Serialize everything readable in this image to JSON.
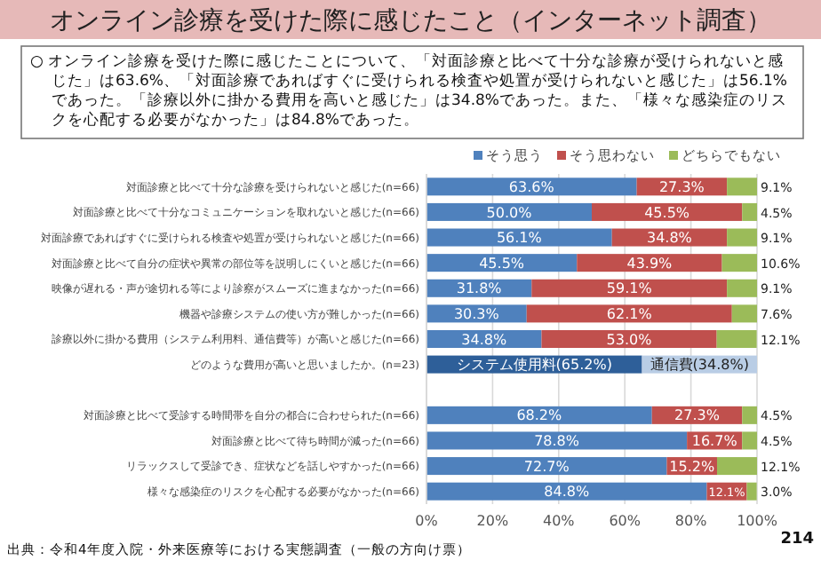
{
  "chart_data": {
    "type": "bar",
    "orientation": "horizontal",
    "stacked": true,
    "title": "オンライン診療を受けた際に感じたこと（インターネット調査）",
    "annotations": [
      "○ オンライン診療を受けた際に感じたことについて、「対面診療と比べて十分な診療が受けられないと感じた」は63.6%、「対面診療であればすぐに受けられる検査や処置が受けられないと感じた」は56.1%であった。「診療以外に掛かる費用を高いと感じた」は34.8%であった。また、「様々な感染症のリスクを心配する必要がなかった」は84.8%であった。",
      "出典：令和4年度入院・外来医療等における実態調査（一般の方向け票）",
      "214"
    ],
    "categories": [
      "対面診療と比べて十分な診療を受けられないと感じた(n=66)",
      "対面診療と比べて十分なコミュニケーションを取れないと感じた(n=66)",
      "対面診療であればすぐに受けられる検査や処置が受けられないと感じた(n=66)",
      "対面診療と比べて自分の症状や異常の部位等を説明しにくいと感じた(n=66)",
      "映像が遅れる・声が途切れる等により診察がスムーズに進まなかった(n=66)",
      "機器や診療システムの使い方が難しかった(n=66)",
      "診療以外に掛かる費用（システム利用料、通信費等）が高いと感じた(n=66)",
      "どのような費用が高いと思いましたか。(n=23)",
      null,
      "対面診療と比べて受診する時間帯を自分の都合に合わせられた(n=66)",
      "対面診療と比べて待ち時間が減った(n=66)",
      "リラックスして受診でき、症状などを話しやすかった(n=66)",
      "様々な感染症のリスクを心配する必要がなかった(n=66)"
    ],
    "series": [
      {
        "name": "そう思う",
        "color": "#4f81bd",
        "values": [
          63.6,
          50.0,
          56.1,
          45.5,
          31.8,
          30.3,
          34.8,
          null,
          null,
          68.2,
          78.8,
          72.7,
          84.8
        ],
        "value_labels": [
          "63.6%",
          "50.0%",
          "56.1%",
          "45.5%",
          "31.8%",
          "30.3%",
          "34.8%",
          null,
          null,
          "68.2%",
          "78.8%",
          "72.7%",
          "84.8%"
        ]
      },
      {
        "name": "そう思わない",
        "color": "#c0504d",
        "values": [
          27.3,
          45.5,
          34.8,
          43.9,
          59.1,
          62.1,
          53.0,
          null,
          null,
          27.3,
          16.7,
          15.2,
          12.1
        ],
        "value_labels": [
          "27.3%",
          "45.5%",
          "34.8%",
          "43.9%",
          "59.1%",
          "62.1%",
          "53.0%",
          null,
          null,
          "27.3%",
          "16.7%",
          "15.2%",
          "12.1%"
        ]
      },
      {
        "name": "どちらでもない",
        "color": "#9bbb59",
        "values": [
          9.1,
          4.5,
          9.1,
          10.6,
          9.1,
          7.6,
          12.1,
          null,
          null,
          4.5,
          4.5,
          12.1,
          3.0
        ],
        "value_labels": [
          "9.1%",
          "4.5%",
          "9.1%",
          "10.6%",
          "9.1%",
          "7.6%",
          "12.1%",
          null,
          null,
          "4.5%",
          "4.5%",
          "12.1%",
          "3.0%"
        ]
      },
      {
        "color": "#2e5f99",
        "values": [
          null,
          null,
          null,
          null,
          null,
          null,
          null,
          65.2,
          null,
          null,
          null,
          null,
          null
        ],
        "value_labels": [
          null,
          null,
          null,
          null,
          null,
          null,
          null,
          "システム使用料(65.2%)",
          null,
          null,
          null,
          null,
          null
        ]
      },
      {
        "color": "#b9cde5",
        "values": [
          null,
          null,
          null,
          null,
          null,
          null,
          null,
          34.8,
          null,
          null,
          null,
          null,
          null
        ],
        "value_labels": [
          null,
          null,
          null,
          null,
          null,
          null,
          null,
          "通信費(34.8%)",
          null,
          null,
          null,
          null,
          null
        ]
      }
    ],
    "xlim": [
      0,
      100
    ],
    "xticks": [
      {
        "value": 0,
        "label": "0%"
      },
      {
        "value": 20,
        "label": "20%"
      },
      {
        "value": 40,
        "label": "40%"
      },
      {
        "value": 60,
        "label": "60%"
      },
      {
        "value": 80,
        "label": "80%"
      },
      {
        "value": 100,
        "label": "100%"
      }
    ],
    "grid": "x",
    "legend": "top"
  }
}
